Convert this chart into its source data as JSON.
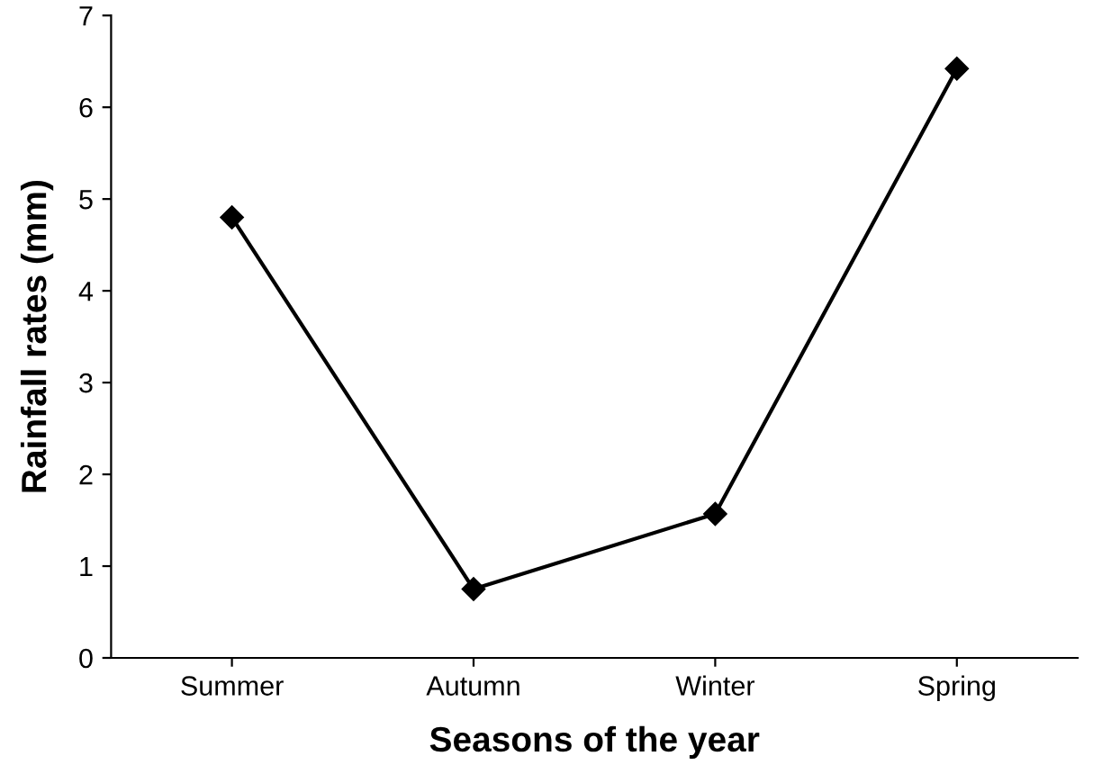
{
  "chart_data": {
    "type": "line",
    "xlabel": "Seasons of the year",
    "ylabel": "Rainfall rates (mm)",
    "categories": [
      "Summer",
      "Autumn",
      "Winter",
      "Spring"
    ],
    "series": [
      {
        "color": "#000000",
        "values": [
          4.8,
          0.75,
          1.57,
          6.42
        ]
      }
    ],
    "ylim": [
      0,
      7
    ],
    "yticks": [
      0,
      1,
      2,
      3,
      4,
      5,
      6,
      7
    ],
    "grid": false,
    "legend": false,
    "marker": "diamond",
    "line_style": "solid"
  }
}
